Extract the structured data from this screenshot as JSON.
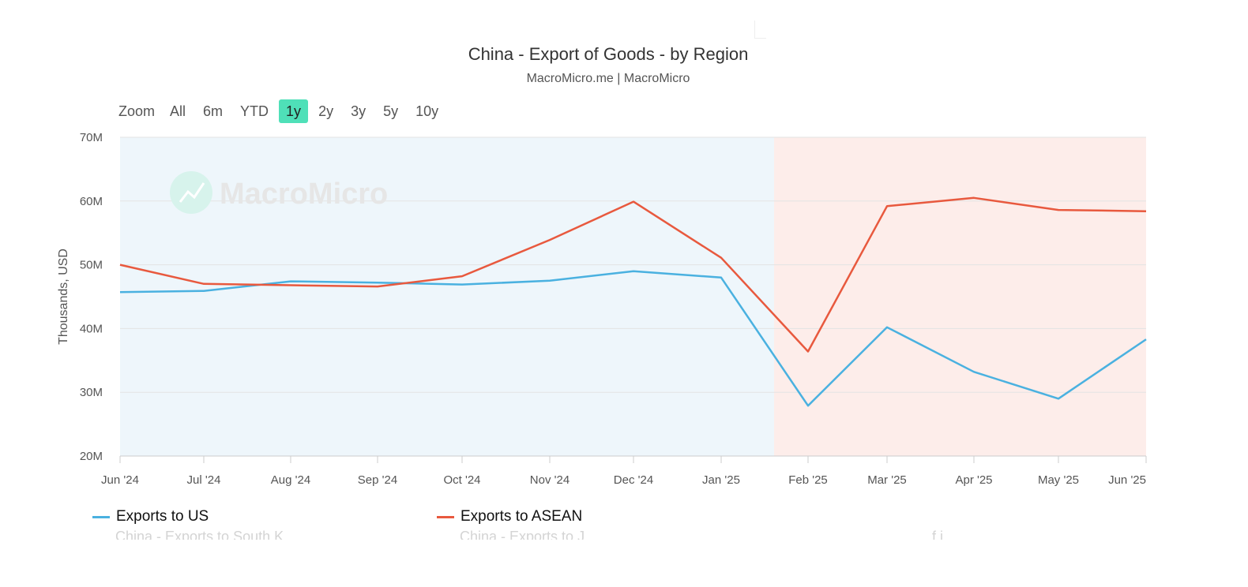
{
  "header": {
    "title": "China - Export of Goods - by Region",
    "subtitle": "MacroMicro.me | MacroMicro"
  },
  "range_selector": {
    "zoom_label": "Zoom",
    "buttons": [
      "All",
      "6m",
      "YTD",
      "1y",
      "2y",
      "3y",
      "5y",
      "10y"
    ],
    "active": "1y"
  },
  "watermark": {
    "text": "MacroMicro"
  },
  "colors": {
    "us": "#4ab1e0",
    "asean": "#e8593e",
    "band_blue": "#eef6fb",
    "band_red": "#fdedea",
    "range_active": "#4fe0b8"
  },
  "chart_data": {
    "type": "line",
    "title": "China - Export of Goods - by Region",
    "subtitle": "MacroMicro.me | MacroMicro",
    "ylabel": "Thousands, USD",
    "xlabel": "",
    "categories": [
      "Jun '24",
      "Jul '24",
      "Aug '24",
      "Sep '24",
      "Oct '24",
      "Nov '24",
      "Dec '24",
      "Jan '25",
      "Feb '25",
      "Mar '25",
      "Apr '25",
      "May '25",
      "Jun '25"
    ],
    "yticks": [
      "20M",
      "30M",
      "40M",
      "50M",
      "60M",
      "70M"
    ],
    "ylim": [
      20,
      70
    ],
    "yunit": "M",
    "series": [
      {
        "name": "Exports to US",
        "color": "#4ab1e0",
        "values": [
          45.7,
          45.9,
          47.4,
          47.2,
          46.9,
          47.5,
          49.0,
          48.0,
          27.9,
          40.2,
          33.2,
          29.0,
          38.3
        ]
      },
      {
        "name": "Exports to ASEAN",
        "color": "#e8593e",
        "values": [
          50.0,
          47.0,
          46.8,
          46.6,
          48.2,
          53.9,
          59.9,
          51.1,
          36.4,
          59.2,
          60.5,
          58.6,
          58.4
        ]
      }
    ],
    "bands": [
      {
        "from": "Jun '24",
        "to_between": [
          "Jan '25",
          "Feb '25"
        ],
        "color": "#eef6fb"
      },
      {
        "from_between": [
          "Jan '25",
          "Feb '25"
        ],
        "to": "Jun '25",
        "color": "#fdedea"
      }
    ],
    "grid": true,
    "legend_position": "bottom-left"
  },
  "legend": {
    "items": [
      "Exports to US",
      "Exports to ASEAN"
    ],
    "faded_items": [
      "China - Exports to South K",
      "China - Exports to J",
      "f i"
    ]
  }
}
